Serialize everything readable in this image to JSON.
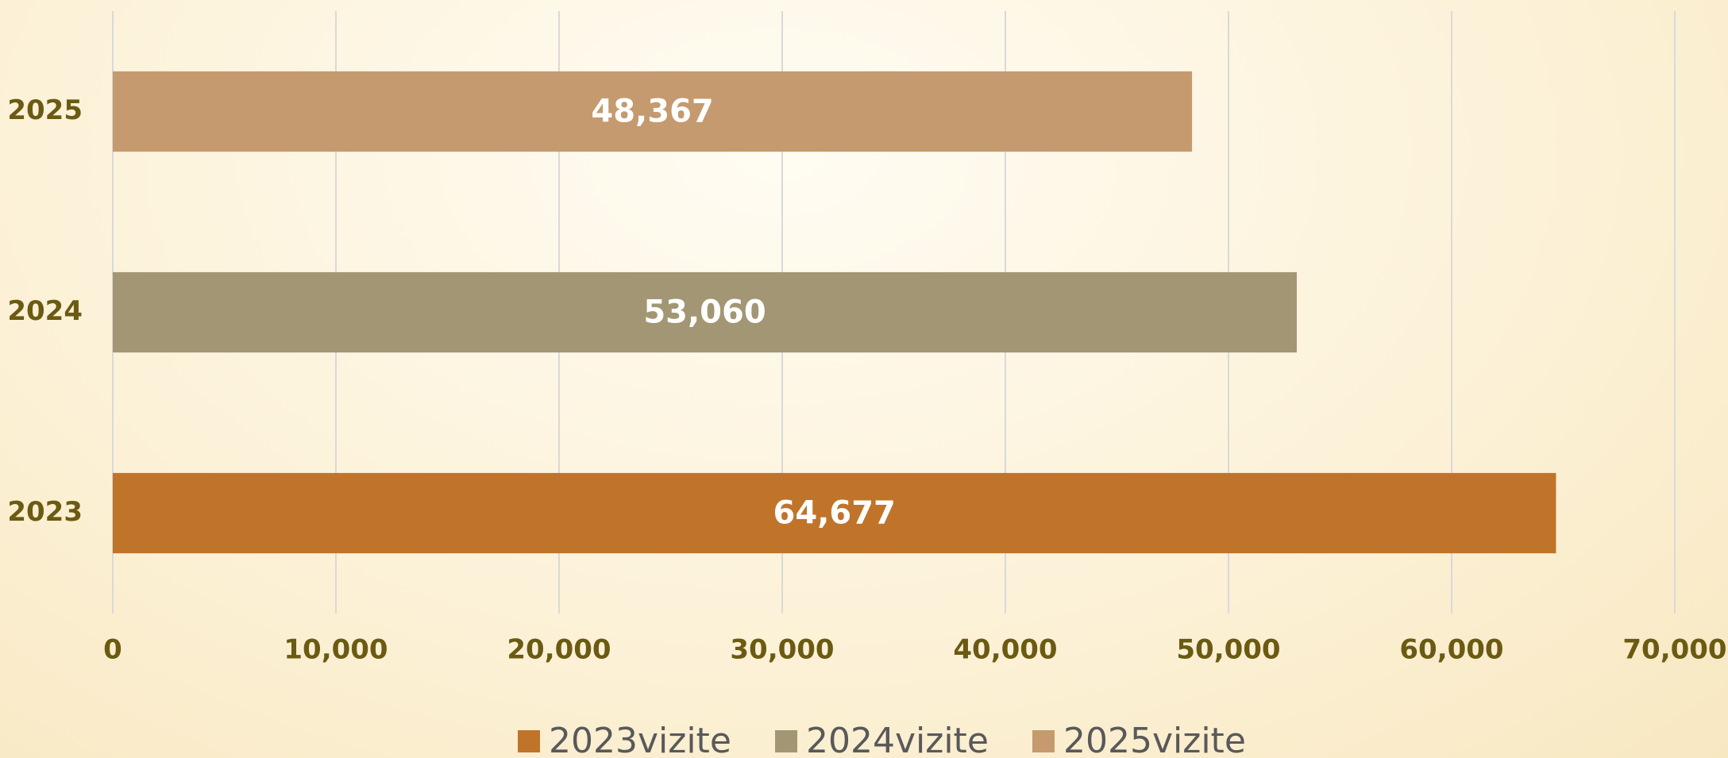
{
  "chart_data": {
    "type": "bar",
    "orientation": "horizontal",
    "categories": [
      "2023",
      "2024",
      "2025"
    ],
    "series": [
      {
        "name": "2023vizite",
        "color": "#c0742a",
        "values": [
          64677,
          null,
          null
        ],
        "value_labels": [
          "64,677",
          null,
          null
        ]
      },
      {
        "name": "2024vizite",
        "color": "#a39674",
        "values": [
          null,
          53060,
          null
        ],
        "value_labels": [
          null,
          "53,060",
          null
        ]
      },
      {
        "name": "2025vizite",
        "color": "#c49a6e",
        "values": [
          null,
          null,
          48367
        ],
        "value_labels": [
          null,
          null,
          "48,367"
        ]
      }
    ],
    "xlim": [
      0,
      70000
    ],
    "xticks": [
      0,
      {
        "value": 10000,
        "label": "10,000"
      },
      {
        "value": 20000,
        "label": "20,000"
      },
      {
        "value": 30000,
        "label": "30,000"
      },
      {
        "value": 40000,
        "label": "40,000"
      },
      {
        "value": 50000,
        "label": "50,000"
      },
      {
        "value": 60000,
        "label": "60,000"
      },
      {
        "value": 70000,
        "label": "70,000"
      }
    ],
    "grid": true,
    "legend": "bottom"
  }
}
